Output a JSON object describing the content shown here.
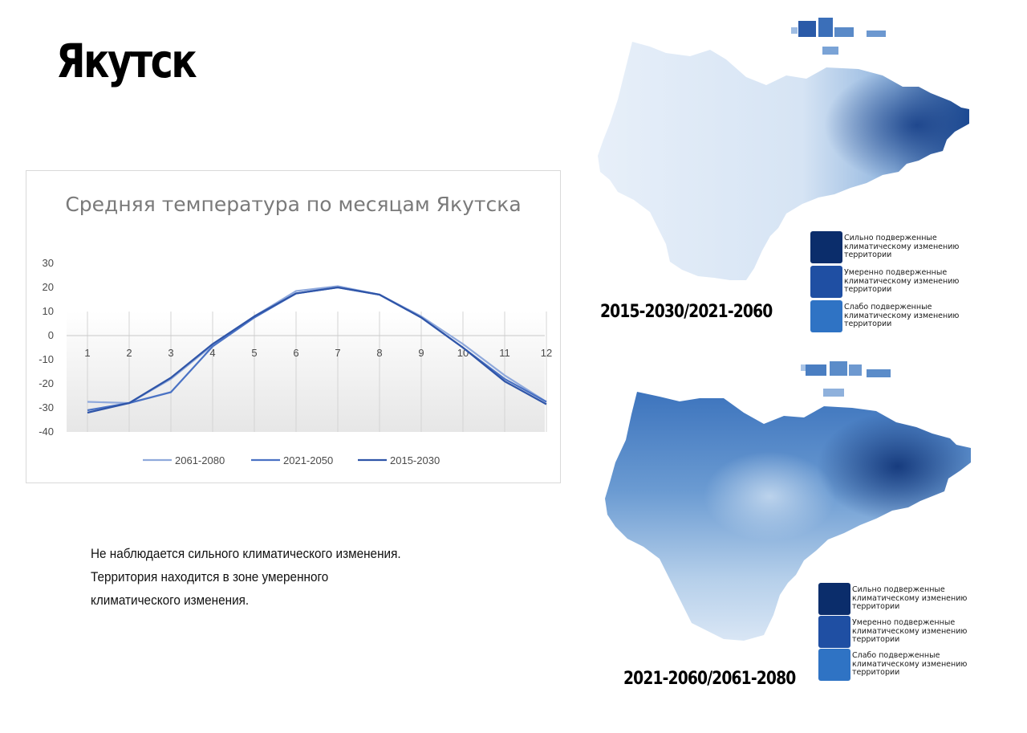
{
  "page": {
    "title": "Якутск",
    "description": [
      "Не наблюдается сильного климатического изменения.",
      "Территория находится в зоне умеренного",
      "климатического изменения."
    ]
  },
  "chart_data": {
    "type": "line",
    "title": "Средняя температура по месяцам Якутска",
    "xlabel": "",
    "ylabel": "",
    "ylim": [
      -40,
      30
    ],
    "yticks": [
      "30",
      "20",
      "10",
      "0",
      "-10",
      "-20",
      "-30",
      "-40"
    ],
    "x": [
      "1",
      "2",
      "3",
      "4",
      "5",
      "6",
      "7",
      "8",
      "9",
      "10",
      "11",
      "12"
    ],
    "grid": "vertical",
    "legend_position": "bottom",
    "series": [
      {
        "name": "2061-2080",
        "color": "#8fa9dc",
        "values": [
          -27.5,
          -28,
          -18,
          -4,
          8,
          18.5,
          20.5,
          17,
          8,
          -3.5,
          -16.5,
          -27.5
        ]
      },
      {
        "name": "2021-2050",
        "color": "#4a72c4",
        "values": [
          -31,
          -28,
          -23.5,
          -4.5,
          7.5,
          17.5,
          20,
          17,
          7.5,
          -5,
          -18,
          -27.5
        ]
      },
      {
        "name": "2015-2030",
        "color": "#2f55a8",
        "values": [
          -32,
          -28,
          -17.5,
          -3.5,
          8,
          17.5,
          20,
          17,
          7.5,
          -5,
          -19,
          -28.5
        ]
      }
    ]
  },
  "maps": [
    {
      "period_label": "2015-2030/2021-2060",
      "legend": [
        {
          "color": "#0b2d6b",
          "label": "Сильно подверженные климатическому изменению территории"
        },
        {
          "color": "#1f4fa3",
          "label": "Умеренно подверженные климатическому изменению территории"
        },
        {
          "color": "#2f73c4",
          "label": "Слабо подверженные климатическому изменению территории"
        }
      ]
    },
    {
      "period_label": "2021-2060/2061-2080",
      "legend": [
        {
          "color": "#0b2d6b",
          "label": "Сильно подверженные климатическому изменению территории"
        },
        {
          "color": "#1f4fa3",
          "label": "Умеренно подверженные климатическому изменению территории"
        },
        {
          "color": "#2f73c4",
          "label": "Слабо подверженные климатическому изменению территории"
        }
      ]
    }
  ]
}
